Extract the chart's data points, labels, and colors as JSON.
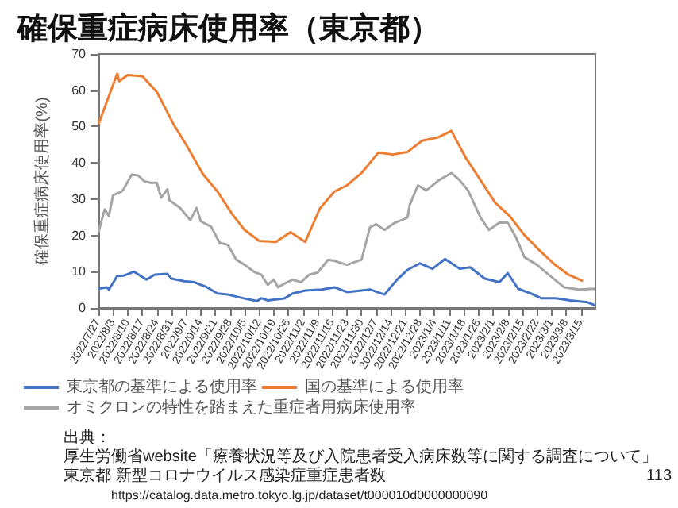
{
  "chart_data": {
    "type": "line",
    "title": "確保重症病床使用率（東京都）",
    "ylabel": "確保重症病床使用率(%)",
    "xlim": [
      "2022-07-27",
      "2023-03-22"
    ],
    "ylim": [
      0,
      70
    ],
    "yticks": [
      0,
      10,
      20,
      30,
      40,
      50,
      60,
      70
    ],
    "xticks": [
      {
        "value": "2022-07-27",
        "label": "2022/7/27"
      },
      {
        "value": "2022-08-03",
        "label": "2022/8/3"
      },
      {
        "value": "2022-08-10",
        "label": "2022/8/10"
      },
      {
        "value": "2022-08-17",
        "label": "2022/8/17"
      },
      {
        "value": "2022-08-24",
        "label": "2022/8/24"
      },
      {
        "value": "2022-08-31",
        "label": "2022/8/31"
      },
      {
        "value": "2022-09-07",
        "label": "2022/9/7"
      },
      {
        "value": "2022-09-14",
        "label": "2022/9/14"
      },
      {
        "value": "2022-09-21",
        "label": "2022/9/21"
      },
      {
        "value": "2022-09-28",
        "label": "2022/9/28"
      },
      {
        "value": "2022-10-05",
        "label": "2022/10/5"
      },
      {
        "value": "2022-10-12",
        "label": "2022/10/12"
      },
      {
        "value": "2022-10-19",
        "label": "2022/10/19"
      },
      {
        "value": "2022-10-26",
        "label": "2022/10/26"
      },
      {
        "value": "2022-11-02",
        "label": "2022/11/2"
      },
      {
        "value": "2022-11-09",
        "label": "2022/11/9"
      },
      {
        "value": "2022-11-16",
        "label": "2022/11/16"
      },
      {
        "value": "2022-11-23",
        "label": "2022/11/23"
      },
      {
        "value": "2022-11-30",
        "label": "2022/11/30"
      },
      {
        "value": "2022-12-07",
        "label": "2022/12/7"
      },
      {
        "value": "2022-12-14",
        "label": "2022/12/14"
      },
      {
        "value": "2022-12-21",
        "label": "2022/12/21"
      },
      {
        "value": "2022-12-28",
        "label": "2022/12/28"
      },
      {
        "value": "2023-01-04",
        "label": "2023/1/4"
      },
      {
        "value": "2023-01-11",
        "label": "2023/1/11"
      },
      {
        "value": "2023-01-18",
        "label": "2023/1/18"
      },
      {
        "value": "2023-01-25",
        "label": "2023/1/25"
      },
      {
        "value": "2023-02-01",
        "label": "2023/2/1"
      },
      {
        "value": "2023-02-08",
        "label": "2023/2/8"
      },
      {
        "value": "2023-02-15",
        "label": "2023/2/15"
      },
      {
        "value": "2023-02-22",
        "label": "2023/2/22"
      },
      {
        "value": "2023-03-01",
        "label": "2023/3/1"
      },
      {
        "value": "2023-03-08",
        "label": "2023/3/8"
      },
      {
        "value": "2023-03-15",
        "label": "2023/3/15"
      }
    ],
    "legend": "bottom",
    "series": [
      {
        "name": "東京都の基準による使用率",
        "color": "#4472c4",
        "x": [
          "2022-07-27",
          "2022-07-31",
          "2022-08-01",
          "2022-08-05",
          "2022-08-08",
          "2022-08-13",
          "2022-08-19",
          "2022-08-23",
          "2022-08-29",
          "2022-08-31",
          "2022-09-06",
          "2022-09-11",
          "2022-09-17",
          "2022-09-22",
          "2022-09-27",
          "2022-10-05",
          "2022-10-11",
          "2022-10-13",
          "2022-10-16",
          "2022-10-24",
          "2022-10-28",
          "2022-11-03",
          "2022-11-11",
          "2022-11-17",
          "2022-11-23",
          "2022-12-04",
          "2022-12-11",
          "2022-12-17",
          "2022-12-22",
          "2022-12-28",
          "2023-01-03",
          "2023-01-09",
          "2023-01-16",
          "2023-01-21",
          "2023-01-28",
          "2023-02-04",
          "2023-02-08",
          "2023-02-13",
          "2023-02-19",
          "2023-02-24",
          "2023-03-03",
          "2023-03-10",
          "2023-03-18",
          "2023-03-22"
        ],
        "values": [
          5.3,
          5.7,
          5.1,
          8.8,
          8.9,
          10,
          7.8,
          9.2,
          9.4,
          8.1,
          7.4,
          7.1,
          5.7,
          4,
          3.7,
          2.6,
          1.9,
          2.7,
          2.1,
          2.6,
          4,
          4.8,
          5.1,
          5.7,
          4.4,
          5.1,
          3.7,
          7.8,
          10.5,
          12.3,
          10.8,
          13.5,
          10.8,
          11.2,
          8.1,
          7.1,
          9.6,
          5.3,
          4,
          2.7,
          2.7,
          2.1,
          1.6,
          0.7
        ]
      },
      {
        "name": "国の基準による使用率",
        "color": "#ed7d31",
        "x": [
          "2022-07-27",
          "2022-08-01",
          "2022-08-05",
          "2022-08-06",
          "2022-08-10",
          "2022-08-17",
          "2022-08-24",
          "2022-09-01",
          "2022-09-07",
          "2022-09-15",
          "2022-09-22",
          "2022-09-29",
          "2022-10-05",
          "2022-10-12",
          "2022-10-20",
          "2022-10-27",
          "2022-11-03",
          "2022-11-10",
          "2022-11-17",
          "2022-11-23",
          "2022-11-30",
          "2022-12-08",
          "2022-12-15",
          "2022-12-22",
          "2022-12-29",
          "2023-01-06",
          "2023-01-12",
          "2023-01-19",
          "2023-01-26",
          "2023-02-02",
          "2023-02-09",
          "2023-02-16",
          "2023-02-23",
          "2023-03-02",
          "2023-03-09",
          "2023-03-16"
        ],
        "values": [
          50.6,
          58.4,
          64.6,
          62.5,
          64.2,
          63.9,
          59.5,
          50.6,
          45,
          36.9,
          32.1,
          25.9,
          21.5,
          18.5,
          18.2,
          20.9,
          18.2,
          27.4,
          32.1,
          33.8,
          37.2,
          42.8,
          42.3,
          43,
          46.1,
          47.1,
          48.8,
          41.3,
          35.2,
          29,
          25.3,
          20.1,
          16,
          12.2,
          9.2,
          7.4
        ]
      },
      {
        "name": "オミクロンの特性を踏まえた重症者用病床使用率",
        "color": "#a5a5a5",
        "x": [
          "2022-07-27",
          "2022-07-30",
          "2022-08-01",
          "2022-08-03",
          "2022-08-07",
          "2022-08-08",
          "2022-08-12",
          "2022-08-15",
          "2022-08-18",
          "2022-08-21",
          "2022-08-24",
          "2022-08-26",
          "2022-08-29",
          "2022-08-30",
          "2022-09-04",
          "2022-09-09",
          "2022-09-12",
          "2022-09-14",
          "2022-09-19",
          "2022-09-23",
          "2022-09-27",
          "2022-10-01",
          "2022-10-05",
          "2022-10-10",
          "2022-10-13",
          "2022-10-16",
          "2022-10-19",
          "2022-10-21",
          "2022-10-24",
          "2022-10-28",
          "2022-11-01",
          "2022-11-05",
          "2022-11-09",
          "2022-11-14",
          "2022-11-17",
          "2022-11-23",
          "2022-11-30",
          "2022-12-04",
          "2022-12-07",
          "2022-12-11",
          "2022-12-16",
          "2022-12-22",
          "2022-12-23",
          "2022-12-27",
          "2022-12-31",
          "2023-01-06",
          "2023-01-12",
          "2023-01-16",
          "2023-01-20",
          "2023-01-26",
          "2023-01-30",
          "2023-02-04",
          "2023-02-08",
          "2023-02-12",
          "2023-02-16",
          "2023-02-22",
          "2023-03-01",
          "2023-03-07",
          "2023-03-14",
          "2023-03-22"
        ],
        "values": [
          20.8,
          27.2,
          25.3,
          31.1,
          32.1,
          32.7,
          36.8,
          36.5,
          34.9,
          34.5,
          34.5,
          30.4,
          32.7,
          29.7,
          27.6,
          24.2,
          27.6,
          23.9,
          22.4,
          18,
          17.4,
          13.3,
          11.9,
          9.8,
          9.2,
          6.4,
          7.8,
          5.7,
          6.7,
          7.8,
          7.1,
          9.2,
          9.8,
          13.3,
          13,
          11.9,
          13.3,
          22.2,
          23.1,
          21.5,
          23.5,
          24.9,
          28.3,
          33.8,
          32.4,
          35.2,
          37.2,
          35.2,
          32.4,
          24.9,
          21.5,
          23.5,
          23.5,
          19.4,
          14,
          11.9,
          8.5,
          5.7,
          5.1,
          5.3
        ]
      }
    ],
    "annotations": [
      "出典：",
      "厚生労働省website「療養状況等及び入院患者受入病床数等に関する調査について」",
      "東京都 新型コロナウイルス感染症重症患者数",
      "https://catalog.data.metro.tokyo.lg.jp/dataset/t000010d0000000090",
      "113"
    ]
  }
}
